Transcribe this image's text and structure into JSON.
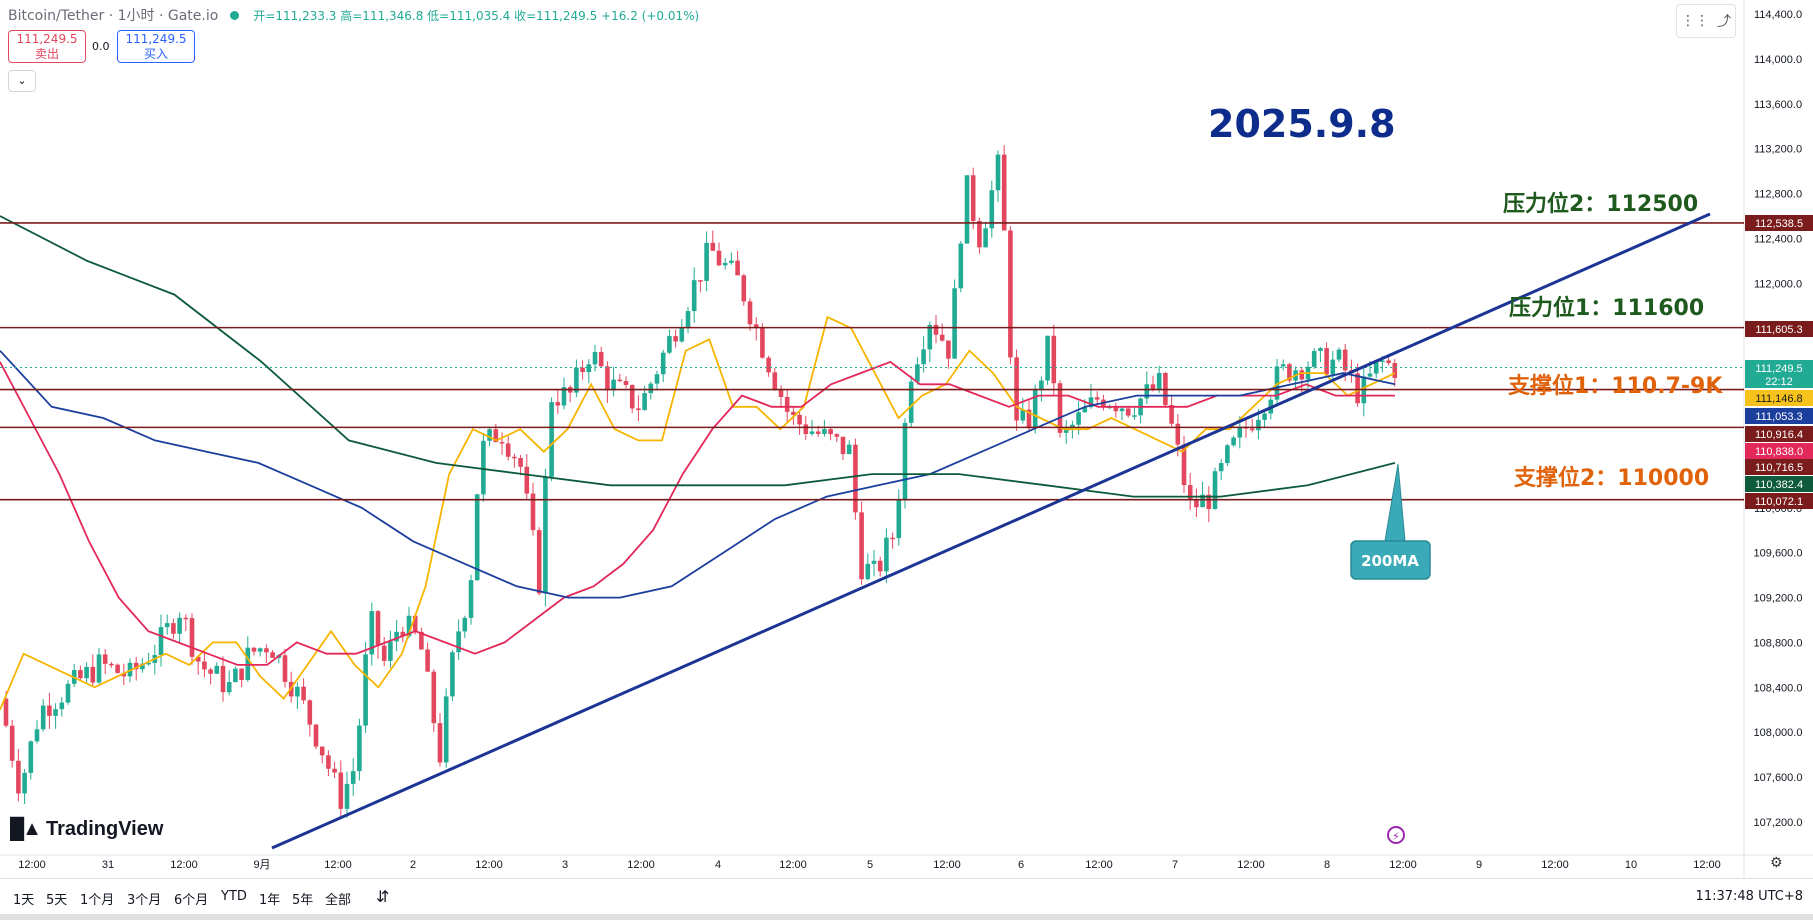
{
  "header": {
    "symbol": "Bitcoin/Tether · 1小时 · Gate.io",
    "ohlc": "开=111,233.3  高=111,346.8  低=111,035.4  收=111,249.5  +16.2 (+0.01%)",
    "sell_price": "111,249.5",
    "sell_label": "卖出",
    "spread": "0.0",
    "buy_price": "111,249.5",
    "buy_label": "买入",
    "collapse_icon": "chevron-down-icon"
  },
  "annotations": {
    "date_title": "2025.9.8",
    "resistance2": "压力位2：112500",
    "resistance1": "压力位1：111600",
    "support1": "支撑位1：110.7-9K",
    "support2": "支撑位2：110000",
    "ma_callout": "200MA"
  },
  "chart_data": {
    "type": "line",
    "title": "",
    "x_ticks": [
      "12:00",
      "31",
      "12:00",
      "9月",
      "12:00",
      "2",
      "12:00",
      "3",
      "12:00",
      "4",
      "12:00",
      "5",
      "12:00",
      "6",
      "12:00",
      "7",
      "12:00",
      "8",
      "12:00",
      "9",
      "12:00",
      "10",
      "12:00"
    ],
    "y_ticks": [
      "114,400.0",
      "114,000.0",
      "113,600.0",
      "113,200.0",
      "112,800.0",
      "112,400.0",
      "112,000.0",
      "111,600.0",
      "111,200.0",
      "110,800.0",
      "110,400.0",
      "110,000.0",
      "109,600.0",
      "109,200.0",
      "108,800.0",
      "108,400.0",
      "108,000.0",
      "107,600.0",
      "107,200.0"
    ],
    "ylim": [
      106900,
      114500
    ],
    "horizontal_levels": [
      112538.5,
      111605.3,
      111053.3,
      110716.5,
      110072.1
    ],
    "trendline": [
      [
        0,
        107050
      ],
      [
        1744,
        112700
      ]
    ],
    "price_tags": [
      {
        "label": "112,538.5",
        "color": "#7b1c1c"
      },
      {
        "label": "111,605.3",
        "color": "#7b1c1c"
      },
      {
        "label": "111,249.5",
        "sub": "22:12",
        "color": "#22ab94"
      },
      {
        "label": "111,146.8",
        "color": "#f7c21c",
        "text": "#131722"
      },
      {
        "label": "111,053.3",
        "color": "#1c3f9e"
      },
      {
        "label": "110,916.4",
        "color": "#7b1c1c"
      },
      {
        "label": "110,838.0",
        "color": "#e3285a"
      },
      {
        "label": "110,716.5",
        "color": "#7b1c1c"
      },
      {
        "label": "110,382.4",
        "color": "#0d5a3c"
      },
      {
        "label": "110,072.1",
        "color": "#7b1c1c"
      }
    ],
    "series": [
      {
        "color": "#f7b500",
        "values": [
          108200,
          108700,
          108600,
          108500,
          108400,
          108500,
          108600,
          108700,
          108600,
          108800,
          108800,
          108500,
          108300,
          108600,
          108900,
          108600,
          108400,
          108700,
          109300,
          110300,
          110700,
          110600,
          110700,
          110500,
          110700,
          111100,
          110700,
          110600,
          110600,
          111400,
          111500,
          110900,
          110900,
          110700,
          110900,
          111700,
          111600,
          111200,
          110800,
          111000,
          111100,
          111400,
          111200,
          110900,
          110800,
          110700,
          110700,
          110800,
          110700,
          110600,
          110500,
          110700,
          110700,
          110900,
          111100,
          111200,
          111200,
          111000,
          111100,
          111200
        ]
      },
      {
        "color": "#e3285a",
        "values": [
          111300,
          110800,
          110300,
          109700,
          109200,
          108900,
          108800,
          108700,
          108600,
          108600,
          108800,
          108700,
          108700,
          108800,
          108900,
          108800,
          108700,
          108800,
          109000,
          109200,
          109300,
          109500,
          109800,
          110300,
          110700,
          111000,
          110900,
          110900,
          111100,
          111200,
          111300,
          111100,
          111100,
          111000,
          110900,
          111000,
          111000,
          110900,
          110900,
          110900,
          110900,
          111000,
          111000,
          111000,
          111100,
          111000,
          111000,
          111000
        ]
      },
      {
        "color": "#1c3f9e",
        "values": [
          111400,
          110900,
          110800,
          110600,
          110500,
          110400,
          110200,
          110000,
          109700,
          109500,
          109300,
          109200,
          109200,
          109300,
          109600,
          109900,
          110100,
          110200,
          110300,
          110500,
          110700,
          110900,
          111000,
          111000,
          111000,
          111100,
          111200,
          111100
        ]
      },
      {
        "color": "#0d5a3c",
        "values": [
          112600,
          112200,
          111900,
          111300,
          110600,
          110400,
          110300,
          110200,
          110200,
          110200,
          110300,
          110300,
          110200,
          110100,
          110100,
          110200,
          110400
        ]
      }
    ],
    "candle_color_up": "#22ab94",
    "candle_color_down": "#e3475e"
  },
  "bottom": {
    "ranges": [
      "1天",
      "5天",
      "1个月",
      "3个月",
      "6个月",
      "YTD",
      "1年",
      "5年",
      "全部"
    ],
    "compare_icon": "compare-icon",
    "clock": "11:37:48 UTC+8"
  },
  "logo": "TradingView"
}
